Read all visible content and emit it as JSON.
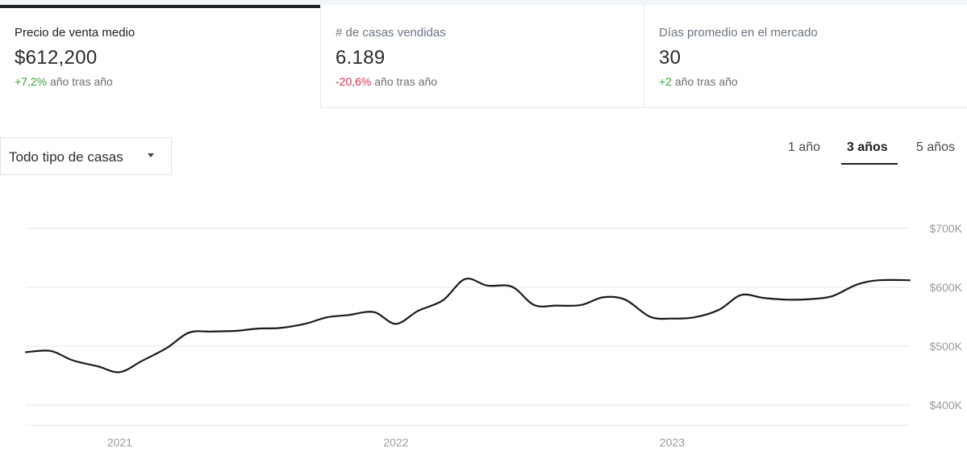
{
  "tabs": [
    {
      "label": "Precio de venta medio",
      "value": "$612,200",
      "change": "+7,2%",
      "change_suffix": " año tras año",
      "change_color": "#3aa63a",
      "active": true
    },
    {
      "label": "# de casas vendidas",
      "value": "6.189",
      "change": "-20,6%",
      "change_suffix": " año tras año",
      "change_color": "#d6314b",
      "active": false
    },
    {
      "label": "Días promedio en el mercado",
      "value": "30",
      "change": "+2",
      "change_suffix": " año tras año",
      "change_color": "#3aa63a",
      "active": false
    }
  ],
  "filter": {
    "selected": "Todo tipo de casas",
    "icon": "caret-down-icon"
  },
  "ranges": [
    {
      "label": "1 año",
      "active": false
    },
    {
      "label": "3 años",
      "active": true
    },
    {
      "label": "5 años",
      "active": false
    }
  ],
  "chart_data": {
    "type": "line",
    "y_tick_labels": [
      "$700K",
      "$600K",
      "$500K",
      "$400K"
    ],
    "y_ticks": [
      700000,
      600000,
      500000,
      400000
    ],
    "ylim": [
      380000,
      700000
    ],
    "x_tick_labels": [
      "2021",
      "2022",
      "2023"
    ],
    "x_ticks": [
      2021.0,
      2022.0,
      2023.0
    ],
    "xlim": [
      2020.66,
      2023.86
    ],
    "grid": true,
    "line_color": "#1a1a1a",
    "series": [
      {
        "x": [
          2020.66,
          2020.75,
          2020.83,
          2020.92,
          2021.0,
          2021.08,
          2021.17,
          2021.25,
          2021.33,
          2021.42,
          2021.5,
          2021.58,
          2021.67,
          2021.75,
          2021.83,
          2021.92,
          2022.0,
          2022.08,
          2022.17,
          2022.25,
          2022.33,
          2022.42,
          2022.5,
          2022.58,
          2022.67,
          2022.75,
          2022.83,
          2022.92,
          2023.0,
          2023.08,
          2023.17,
          2023.25,
          2023.33,
          2023.42,
          2023.5,
          2023.58,
          2023.67,
          2023.75,
          2023.86
        ],
        "y": [
          490000,
          492000,
          476000,
          466000,
          456000,
          475000,
          497000,
          523000,
          525000,
          526000,
          530000,
          531000,
          538000,
          549000,
          553000,
          558000,
          538000,
          560000,
          578000,
          614000,
          603000,
          601000,
          570000,
          569000,
          570000,
          583000,
          579000,
          550000,
          547000,
          549000,
          562000,
          587000,
          582000,
          579000,
          580000,
          585000,
          605000,
          612000,
          612000
        ]
      }
    ]
  }
}
